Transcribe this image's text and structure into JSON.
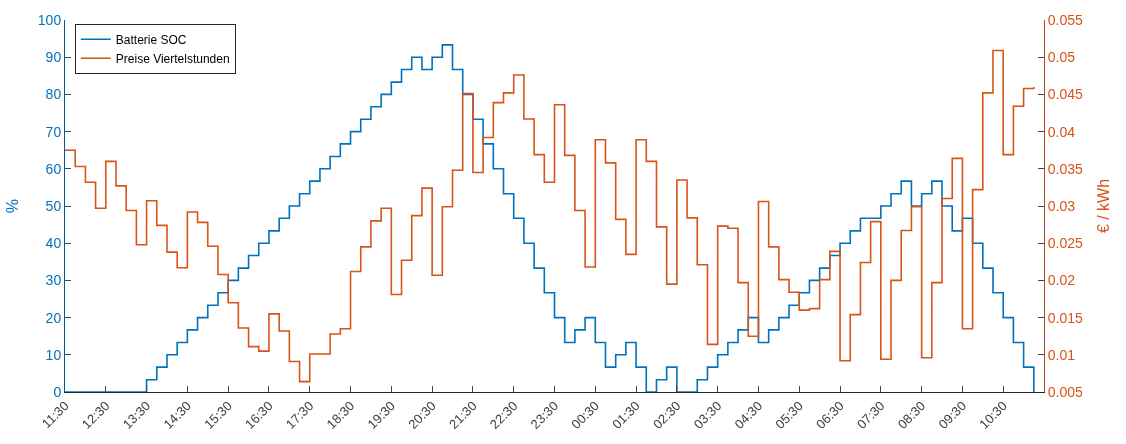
{
  "chart_data": {
    "type": "step",
    "ylabel": "%",
    "y2label": "€ / kWh",
    "categories": [
      "11:30",
      null,
      null,
      null,
      "12:30",
      null,
      null,
      null,
      "13:30",
      null,
      null,
      null,
      "14:30",
      null,
      null,
      null,
      "15:30",
      null,
      null,
      null,
      "16:30",
      null,
      null,
      null,
      "17:30",
      null,
      null,
      null,
      "18:30",
      null,
      null,
      null,
      "19:30",
      null,
      null,
      null,
      "20:30",
      null,
      null,
      null,
      "21:30",
      null,
      null,
      null,
      "22:30",
      null,
      null,
      null,
      "23:30",
      null,
      null,
      null,
      "00:30",
      null,
      null,
      null,
      "01:30",
      null,
      null,
      null,
      "02:30",
      null,
      null,
      null,
      "03:30",
      null,
      null,
      null,
      "04:30",
      null,
      null,
      null,
      "05:30",
      null,
      null,
      null,
      "06:30",
      null,
      null,
      null,
      "07:30",
      null,
      null,
      null,
      "08:30",
      null,
      null,
      null,
      "09:30",
      null,
      null,
      null,
      "10:30",
      null,
      null,
      null
    ],
    "series": [
      {
        "name": "Batterie SOC",
        "color": "#0072bd",
        "values": [
          0,
          0,
          0,
          0,
          0,
          0,
          0,
          0,
          3.3,
          6.7,
          10,
          13.3,
          16.7,
          20,
          23.3,
          26.7,
          30,
          33.3,
          36.7,
          40,
          43.3,
          46.7,
          50,
          53.3,
          56.7,
          60,
          63.3,
          66.7,
          70,
          73.3,
          76.7,
          80,
          83.3,
          86.7,
          90,
          86.7,
          90,
          93.3,
          86.7,
          80,
          73.3,
          66.7,
          60,
          53.3,
          46.7,
          40,
          33.3,
          26.7,
          20,
          13.3,
          16.7,
          20,
          13.3,
          6.7,
          10,
          13.3,
          6.7,
          0,
          3.3,
          6.7,
          0,
          0,
          3.3,
          6.7,
          10,
          13.3,
          16.7,
          20,
          13.3,
          16.7,
          20,
          23.3,
          26.7,
          30,
          33.3,
          36.7,
          40,
          43.3,
          46.7,
          46.7,
          50,
          53.3,
          56.7,
          50,
          53.3,
          56.7,
          50,
          43.3,
          46.7,
          40,
          33.3,
          26.7,
          20,
          13.3,
          6.7,
          0
        ]
      },
      {
        "name": "Preise Viertelstunden",
        "color": "#d95319",
        "axis": "y2",
        "values": [
          0.0375,
          0.0353,
          0.0332,
          0.0297,
          0.036,
          0.0327,
          0.0294,
          0.0248,
          0.0307,
          0.0274,
          0.0238,
          0.0217,
          0.0292,
          0.0278,
          0.0246,
          0.0208,
          0.017,
          0.0136,
          0.0111,
          0.0105,
          0.0155,
          0.0132,
          0.0091,
          0.0064,
          0.0101,
          0.0101,
          0.0128,
          0.0135,
          0.0212,
          0.0245,
          0.028,
          0.0297,
          0.0181,
          0.0227,
          0.0287,
          0.0324,
          0.0207,
          0.0299,
          0.0348,
          0.0451,
          0.0345,
          0.0392,
          0.0439,
          0.0452,
          0.0476,
          0.0417,
          0.0369,
          0.0332,
          0.0436,
          0.0368,
          0.0294,
          0.0218,
          0.0389,
          0.0358,
          0.0282,
          0.0235,
          0.0389,
          0.036,
          0.0272,
          0.0195,
          0.0335,
          0.0284,
          0.0221,
          0.0114,
          0.0273,
          0.027,
          0.0197,
          0.0125,
          0.0306,
          0.0245,
          0.0201,
          0.0184,
          0.016,
          0.0162,
          0.0201,
          0.0239,
          0.0092,
          0.0154,
          0.0224,
          0.0279,
          0.0094,
          0.02,
          0.0267,
          0.0299,
          0.0096,
          0.0197,
          0.031,
          0.0364,
          0.0135,
          0.0322,
          0.0452,
          0.0509,
          0.0369,
          0.0434,
          0.0458,
          0.046
        ]
      }
    ],
    "ylim": [
      0,
      100
    ],
    "yticks": [
      0,
      10,
      20,
      30,
      40,
      50,
      60,
      70,
      80,
      90,
      100
    ],
    "y2lim": [
      0.005,
      0.055
    ],
    "y2ticks": [
      0.005,
      0.01,
      0.015,
      0.02,
      0.025,
      0.03,
      0.035,
      0.04,
      0.045,
      0.05,
      0.055
    ],
    "legend": "top left"
  }
}
